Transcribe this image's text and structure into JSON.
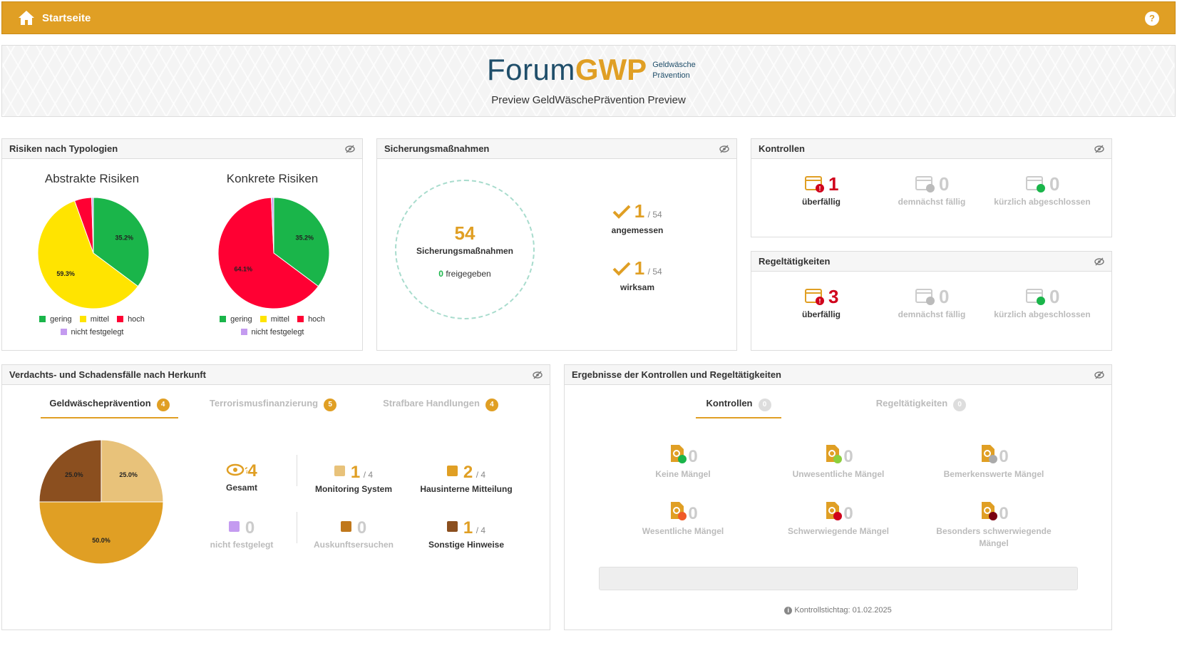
{
  "header": {
    "title": "Startseite",
    "help_label": "?"
  },
  "banner": {
    "logo_forum": "Forum",
    "logo_gwp": "GWP",
    "logo_sub_line1": "Geldwäsche",
    "logo_sub_line2": "Prävention",
    "preview_text": "Preview GeldWäschePrävention Preview"
  },
  "risiken": {
    "title": "Risiken nach Typologien",
    "abstrakt_title": "Abstrakte Risiken",
    "konkret_title": "Konkrete Risiken",
    "legend": {
      "geringe": "gering",
      "mittel": "mittel",
      "hoch": "hoch",
      "nicht": "nicht festgelegt"
    }
  },
  "colors": {
    "accent": "#e09f24",
    "gering": "#1ab54a",
    "mittel": "#ffe400",
    "hoch": "#ff0033",
    "nicht": "#c49bf0",
    "sonstige": "#8b4f1f",
    "auskunft": "#c0781c",
    "hausintern": "#e09f24",
    "monitoring": "#e8c27a",
    "red": "#d0021b"
  },
  "chart_data": [
    {
      "type": "pie",
      "title": "Abstrakte Risiken",
      "categories": [
        "gering",
        "mittel",
        "hoch",
        "nicht festgelegt"
      ],
      "values": [
        35.2,
        59.3,
        5.0,
        0.5
      ],
      "labels": [
        "35.2%",
        "59.3%",
        "",
        ""
      ]
    },
    {
      "type": "pie",
      "title": "Konkrete Risiken",
      "categories": [
        "gering",
        "mittel",
        "hoch",
        "nicht festgelegt"
      ],
      "values": [
        35.2,
        0,
        64.1,
        0.7
      ],
      "labels": [
        "35.2%",
        "",
        "64.1%",
        ""
      ]
    },
    {
      "type": "pie",
      "title": "Verdachts- und Schadensfälle nach Herkunft",
      "categories": [
        "Monitoring System",
        "Hausinterne Mitteilung",
        "Sonstige Hinweise"
      ],
      "values": [
        25.0,
        50.0,
        25.0
      ],
      "labels": [
        "25.0%",
        "50.0%",
        "25.0%"
      ]
    }
  ],
  "sicherung": {
    "title": "Sicherungsmaßnahmen",
    "count": "54",
    "count_label": "Sicherungsmaßnahmen",
    "freigegeben_num": "0",
    "freigegeben_label": "freigegeben",
    "angemessen_num": "1",
    "angemessen_total": "/ 54",
    "angemessen_label": "angemessen",
    "wirksam_num": "1",
    "wirksam_total": "/ 54",
    "wirksam_label": "wirksam"
  },
  "kontrollen": {
    "title": "Kontrollen",
    "ueberfaellig_num": "1",
    "ueberfaellig_label": "überfällig",
    "demnaechst_num": "0",
    "demnaechst_label": "demnächst fällig",
    "kuerzlich_num": "0",
    "kuerzlich_label": "kürzlich abgeschlossen"
  },
  "regel": {
    "title": "Regeltätigkeiten",
    "ueberfaellig_num": "3",
    "ueberfaellig_label": "überfällig",
    "demnaechst_num": "0",
    "demnaechst_label": "demnächst fällig",
    "kuerzlich_num": "0",
    "kuerzlich_label": "kürzlich abgeschlossen"
  },
  "verdacht": {
    "title": "Verdachts- und Schadensfälle nach Herkunft",
    "tabs": [
      {
        "label": "Geldwäscheprävention",
        "count": "4"
      },
      {
        "label": "Terrorismusfinanzierung",
        "count": "5"
      },
      {
        "label": "Strafbare Handlungen",
        "count": "4"
      }
    ],
    "gesamt_num": "4",
    "gesamt_label": "Gesamt",
    "monitoring_num": "1",
    "monitoring_total": "/ 4",
    "monitoring_label": "Monitoring System",
    "hausintern_num": "2",
    "hausintern_total": "/ 4",
    "hausintern_label": "Hausinterne Mitteilung",
    "nicht_num": "0",
    "nicht_label": "nicht festgelegt",
    "auskunft_num": "0",
    "auskunft_label": "Auskunftsersuchen",
    "sonstige_num": "1",
    "sonstige_total": "/ 4",
    "sonstige_label": "Sonstige Hinweise"
  },
  "ergebnisse": {
    "title": "Ergebnisse der Kontrollen und Regeltätigkeiten",
    "tabs": [
      {
        "label": "Kontrollen",
        "count": "0"
      },
      {
        "label": "Regeltätigkeiten",
        "count": "0"
      }
    ],
    "items": [
      {
        "num": "0",
        "label": "Keine Mängel"
      },
      {
        "num": "0",
        "label": "Unwesentliche Mängel"
      },
      {
        "num": "0",
        "label": "Bemerkenswerte Mängel"
      },
      {
        "num": "0",
        "label": "Wesentliche Mängel"
      },
      {
        "num": "0",
        "label": "Schwerwiegende Mängel"
      },
      {
        "num": "0",
        "label": "Besonders schwerwiegende Mängel"
      }
    ],
    "stichtag": "Kontrollstichtag: 01.02.2025"
  }
}
